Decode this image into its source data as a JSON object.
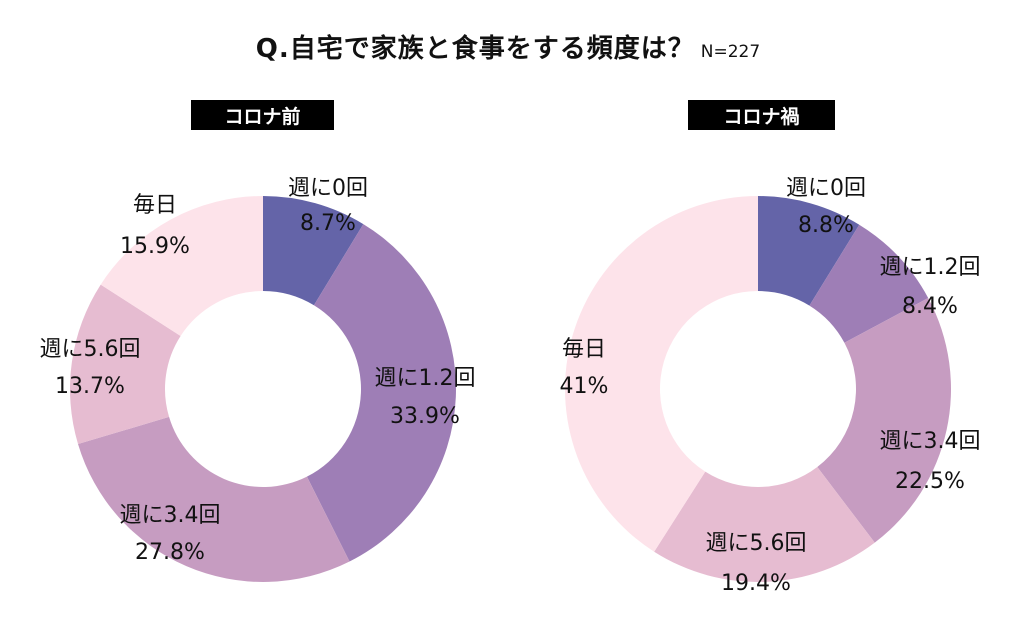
{
  "title": "Q.自宅で家族と食事をする頻度は？",
  "sample_size": "N=227",
  "chart_data": [
    {
      "type": "pie",
      "title": "コロナ前",
      "slices": [
        {
          "label": "週に0回",
          "value": 8.7,
          "value_label": "8.7%",
          "color": "#6464a8"
        },
        {
          "label": "週に1.2回",
          "value": 33.9,
          "value_label": "33.9%",
          "color": "#9e7eb6"
        },
        {
          "label": "週に3.4回",
          "value": 27.8,
          "value_label": "27.8%",
          "color": "#c69cc1"
        },
        {
          "label": "週に5.6回",
          "value": 13.7,
          "value_label": "13.7%",
          "color": "#e6bcd1"
        },
        {
          "label": "毎日",
          "value": 15.9,
          "value_label": "15.9%",
          "color": "#fde3ea"
        }
      ]
    },
    {
      "type": "pie",
      "title": "コロナ禍",
      "slices": [
        {
          "label": "週に0回",
          "value": 8.8,
          "value_label": "8.8%",
          "color": "#6464a8"
        },
        {
          "label": "週に1.2回",
          "value": 8.4,
          "value_label": "8.4%",
          "color": "#9e7eb6"
        },
        {
          "label": "週に3.4回",
          "value": 22.5,
          "value_label": "22.5%",
          "color": "#c69cc1"
        },
        {
          "label": "週に5.6回",
          "value": 19.4,
          "value_label": "19.4%",
          "color": "#e6bcd1"
        },
        {
          "label": "毎日",
          "value": 41,
          "value_label": "41%",
          "color": "#fde3ea"
        }
      ]
    }
  ]
}
